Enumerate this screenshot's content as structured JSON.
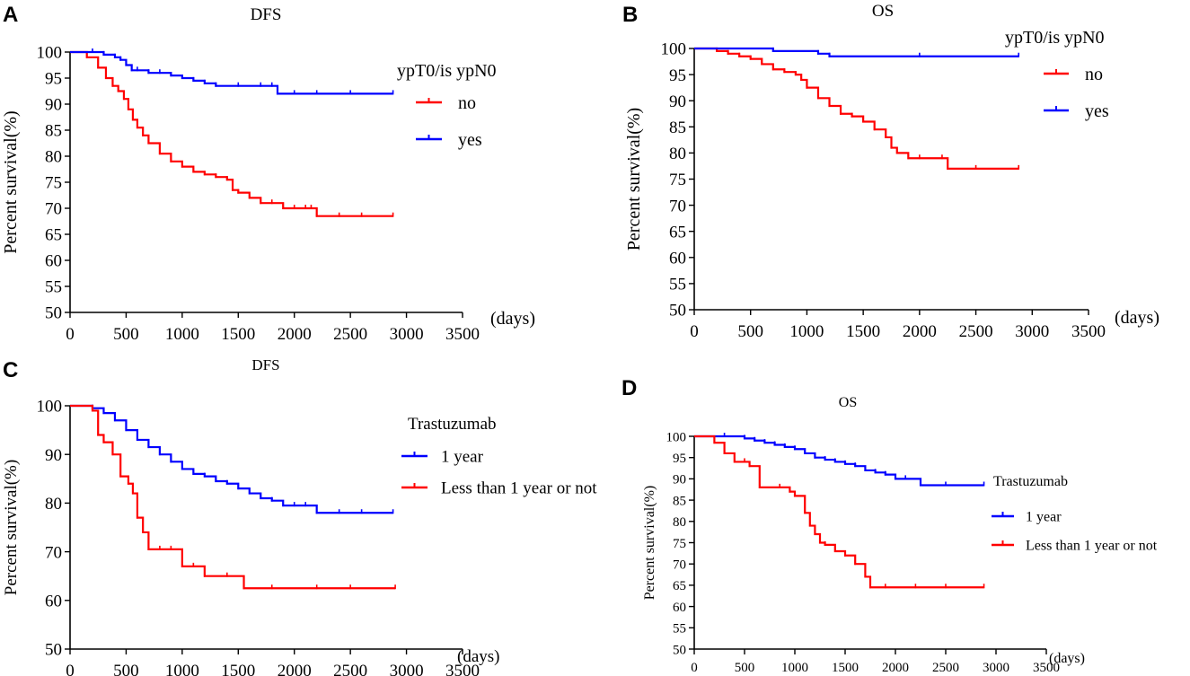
{
  "chart_data": [
    {
      "panel_letter": "A",
      "type": "line",
      "subtype": "kaplan-meier",
      "title": "DFS",
      "ylabel": "Percent survival(%)",
      "xunit_label": "(days)",
      "xlim": [
        0,
        3500
      ],
      "ylim": [
        50,
        100
      ],
      "xticks": [
        0,
        500,
        1000,
        1500,
        2000,
        2500,
        3000,
        3500
      ],
      "yticks": [
        50,
        55,
        60,
        65,
        70,
        75,
        80,
        85,
        90,
        95,
        100
      ],
      "legend_title": "ypT0/is ypN0",
      "legend_position": "right",
      "series": [
        {
          "name": "no",
          "color": "#ff0000",
          "x": [
            0,
            150,
            250,
            320,
            380,
            430,
            480,
            520,
            560,
            600,
            650,
            700,
            800,
            900,
            1000,
            1100,
            1200,
            1300,
            1400,
            1450,
            1500,
            1600,
            1700,
            1800,
            1900,
            2000,
            2100,
            2150,
            2200,
            2400,
            2600,
            2880
          ],
          "y": [
            100,
            99,
            97,
            95,
            93.5,
            92.5,
            91,
            89,
            87,
            85.5,
            84,
            82.5,
            80.5,
            79,
            78,
            77,
            76.5,
            76,
            75.5,
            73.5,
            73,
            72,
            71,
            71,
            70,
            70,
            70,
            70,
            68.5,
            68.5,
            68.5,
            68.5
          ]
        },
        {
          "name": "yes",
          "color": "#0000ff",
          "x": [
            0,
            200,
            300,
            400,
            450,
            500,
            550,
            600,
            700,
            800,
            900,
            1000,
            1100,
            1200,
            1300,
            1500,
            1700,
            1800,
            1850,
            2000,
            2200,
            2500,
            2880
          ],
          "y": [
            100,
            100,
            99.5,
            99,
            98.5,
            97.5,
            96.5,
            96.5,
            96,
            96,
            95.5,
            95,
            94.5,
            94,
            93.5,
            93.5,
            93.5,
            93.5,
            92,
            92,
            92,
            92,
            92
          ]
        }
      ]
    },
    {
      "panel_letter": "B",
      "type": "line",
      "subtype": "kaplan-meier",
      "title": "OS",
      "ylabel": "Percent survival(%)",
      "xunit_label": "(days)",
      "xlim": [
        0,
        3500
      ],
      "ylim": [
        50,
        100
      ],
      "xticks": [
        0,
        500,
        1000,
        1500,
        2000,
        2500,
        3000,
        3500
      ],
      "yticks": [
        50,
        55,
        60,
        65,
        70,
        75,
        80,
        85,
        90,
        95,
        100
      ],
      "legend_title": "ypT0/is ypN0",
      "legend_position": "right",
      "series": [
        {
          "name": "no",
          "color": "#ff0000",
          "x": [
            0,
            200,
            300,
            400,
            500,
            600,
            700,
            800,
            900,
            950,
            1000,
            1100,
            1200,
            1300,
            1400,
            1500,
            1600,
            1700,
            1750,
            1800,
            1900,
            2000,
            2200,
            2250,
            2500,
            2880
          ],
          "y": [
            100,
            99.5,
            99,
            98.5,
            98,
            97,
            96,
            95.5,
            95,
            94,
            92.5,
            90.5,
            89,
            87.5,
            87,
            86,
            84.5,
            83,
            81,
            80,
            79,
            79,
            79,
            77,
            77,
            77
          ]
        },
        {
          "name": "yes",
          "color": "#0000ff",
          "x": [
            0,
            700,
            1100,
            1200,
            2000,
            2880
          ],
          "y": [
            100,
            99.5,
            99,
            98.5,
            98.5,
            98.5
          ]
        }
      ]
    },
    {
      "panel_letter": "C",
      "type": "line",
      "subtype": "kaplan-meier",
      "title": "DFS",
      "ylabel": "Percent survival(%)",
      "xunit_label": "(days)",
      "xlim": [
        0,
        3500
      ],
      "ylim": [
        50,
        100
      ],
      "xticks": [
        0,
        500,
        1000,
        1500,
        2000,
        2500,
        3000,
        3500
      ],
      "yticks": [
        50,
        60,
        70,
        80,
        90,
        100
      ],
      "legend_title": "Trastuzumab",
      "legend_position": "right",
      "series": [
        {
          "name": "1 year",
          "color": "#0000ff",
          "x": [
            0,
            200,
            300,
            400,
            500,
            600,
            700,
            800,
            900,
            1000,
            1100,
            1200,
            1300,
            1400,
            1500,
            1600,
            1700,
            1800,
            1900,
            2000,
            2100,
            2200,
            2400,
            2600,
            2880
          ],
          "y": [
            100,
            99.5,
            98.5,
            97,
            95,
            93,
            91.5,
            90,
            88.5,
            87,
            86,
            85.5,
            84.5,
            84,
            83,
            82,
            81,
            80.5,
            79.5,
            79.5,
            79.5,
            78,
            78,
            78,
            78
          ]
        },
        {
          "name": "Less than 1 year or not",
          "color": "#ff0000",
          "x": [
            0,
            200,
            250,
            300,
            380,
            450,
            520,
            560,
            600,
            650,
            700,
            800,
            900,
            1000,
            1100,
            1200,
            1400,
            1550,
            1800,
            2200,
            2500,
            2900
          ],
          "y": [
            100,
            99,
            94,
            92.5,
            90,
            85.5,
            84,
            82,
            77,
            74,
            70.5,
            70.5,
            70.5,
            67,
            67,
            65,
            65,
            62.5,
            62.5,
            62.5,
            62.5,
            62.5
          ]
        }
      ]
    },
    {
      "panel_letter": "D",
      "type": "line",
      "subtype": "kaplan-meier",
      "title": "OS",
      "ylabel": "Percent survival(%)",
      "xunit_label": "(days)",
      "xlim": [
        0,
        3500
      ],
      "ylim": [
        50,
        100
      ],
      "xticks": [
        0,
        500,
        1000,
        1500,
        2000,
        2500,
        3000,
        3500
      ],
      "yticks": [
        50,
        55,
        60,
        65,
        70,
        75,
        80,
        85,
        90,
        95,
        100
      ],
      "legend_title": "Trastuzumab",
      "legend_position": "right",
      "series": [
        {
          "name": "1 year",
          "color": "#0000ff",
          "x": [
            0,
            300,
            500,
            600,
            700,
            800,
            900,
            1000,
            1100,
            1200,
            1300,
            1400,
            1500,
            1600,
            1700,
            1800,
            1900,
            2000,
            2100,
            2250,
            2500,
            2880
          ],
          "y": [
            100,
            100,
            99.5,
            99,
            98.5,
            98,
            97.5,
            97,
            96,
            95,
            94.5,
            94,
            93.5,
            93,
            92,
            91.5,
            91,
            90,
            90,
            88.5,
            88.5,
            88.5
          ]
        },
        {
          "name": "Less than 1 year or not",
          "color": "#ff0000",
          "x": [
            0,
            200,
            300,
            400,
            500,
            550,
            650,
            850,
            950,
            1000,
            1100,
            1150,
            1200,
            1250,
            1300,
            1400,
            1500,
            1600,
            1700,
            1750,
            1900,
            2200,
            2500,
            2880
          ],
          "y": [
            100,
            98.5,
            96,
            94,
            94,
            93,
            88,
            88,
            87,
            86,
            82,
            79,
            77,
            75,
            74.5,
            73,
            72,
            70,
            67,
            64.5,
            64.5,
            64.5,
            64.5,
            64.5
          ]
        }
      ]
    }
  ]
}
